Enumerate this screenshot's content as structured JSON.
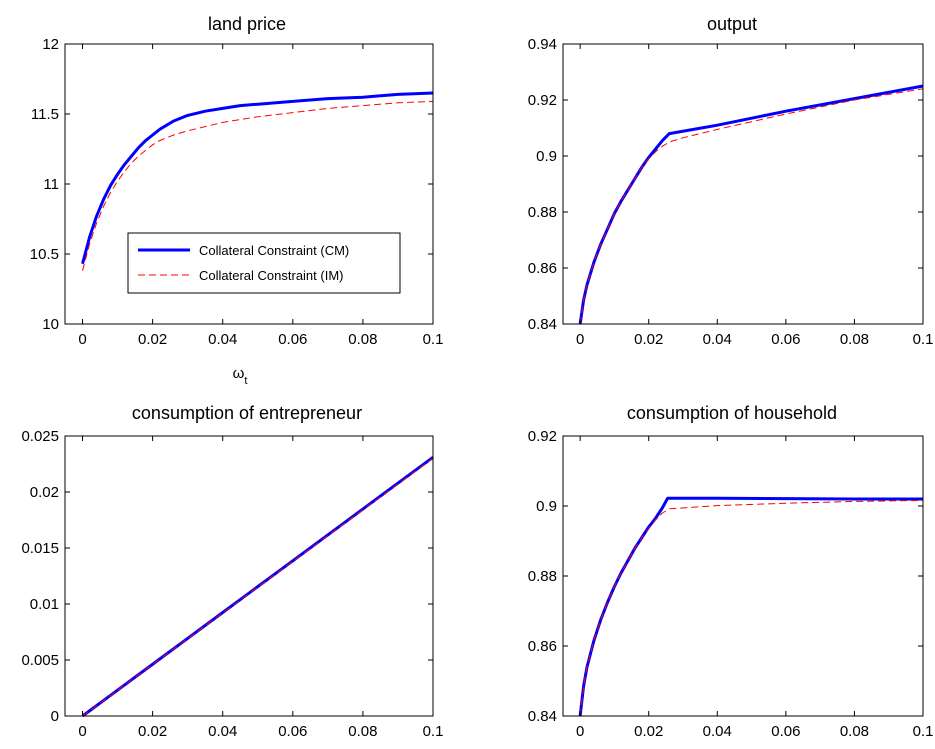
{
  "chart_data": [
    {
      "type": "line",
      "title": "land price",
      "xlabel": "ω",
      "xlabel_sub": "t",
      "ylabel": "",
      "xlim": [
        -0.005,
        0.1
      ],
      "ylim": [
        10,
        12
      ],
      "xticks": [
        0,
        0.02,
        0.04,
        0.06,
        0.08,
        0.1
      ],
      "xtick_labels": [
        "0",
        "0.02",
        "0.04",
        "0.06",
        "0.08",
        "0.1"
      ],
      "yticks": [
        10,
        10.5,
        11,
        11.5,
        12
      ],
      "ytick_labels": [
        "10",
        "10.5",
        "11",
        "11.5",
        "12"
      ],
      "legend": {
        "position": "lower-center",
        "entries": [
          "Collateral Constraint (CM)",
          "Collateral Constraint (IM)"
        ]
      },
      "series": [
        {
          "name": "Collateral Constraint (CM)",
          "color": "#0000ff",
          "style": "solid",
          "x": [
            0,
            0.002,
            0.004,
            0.006,
            0.008,
            0.01,
            0.012,
            0.014,
            0.016,
            0.018,
            0.02,
            0.022,
            0.024,
            0.026,
            0.03,
            0.035,
            0.04,
            0.045,
            0.05,
            0.06,
            0.07,
            0.08,
            0.09,
            0.1
          ],
          "y": [
            10.43,
            10.62,
            10.77,
            10.89,
            10.99,
            11.07,
            11.14,
            11.2,
            11.26,
            11.31,
            11.35,
            11.39,
            11.42,
            11.45,
            11.49,
            11.52,
            11.54,
            11.56,
            11.57,
            11.59,
            11.61,
            11.62,
            11.64,
            11.65
          ]
        },
        {
          "name": "Collateral Constraint (IM)",
          "color": "#ff0000",
          "style": "dashed",
          "x": [
            0,
            0.002,
            0.004,
            0.006,
            0.008,
            0.01,
            0.012,
            0.014,
            0.016,
            0.018,
            0.02,
            0.022,
            0.024,
            0.026,
            0.03,
            0.035,
            0.04,
            0.045,
            0.05,
            0.06,
            0.07,
            0.08,
            0.09,
            0.1
          ],
          "y": [
            10.38,
            10.57,
            10.72,
            10.84,
            10.94,
            11.02,
            11.09,
            11.15,
            11.2,
            11.24,
            11.28,
            11.31,
            11.33,
            11.35,
            11.38,
            11.41,
            11.44,
            11.46,
            11.48,
            11.51,
            11.54,
            11.56,
            11.58,
            11.59
          ]
        }
      ]
    },
    {
      "type": "line",
      "title": "output",
      "xlabel": "",
      "ylabel": "",
      "xlim": [
        -0.005,
        0.1
      ],
      "ylim": [
        0.84,
        0.94
      ],
      "xticks": [
        0,
        0.02,
        0.04,
        0.06,
        0.08,
        0.1
      ],
      "xtick_labels": [
        "0",
        "0.02",
        "0.04",
        "0.06",
        "0.08",
        "0.1"
      ],
      "yticks": [
        0.84,
        0.86,
        0.88,
        0.9,
        0.92,
        0.94
      ],
      "ytick_labels": [
        "0.84",
        "0.86",
        "0.88",
        "0.9",
        "0.92",
        "0.94"
      ],
      "series": [
        {
          "name": "Collateral Constraint (CM)",
          "color": "#0000ff",
          "style": "solid",
          "x": [
            0,
            0.001,
            0.002,
            0.004,
            0.006,
            0.008,
            0.01,
            0.012,
            0.014,
            0.016,
            0.018,
            0.02,
            0.022,
            0.024,
            0.026,
            0.04,
            0.06,
            0.08,
            0.1
          ],
          "y": [
            0.84,
            0.8485,
            0.854,
            0.862,
            0.8685,
            0.874,
            0.8795,
            0.884,
            0.888,
            0.892,
            0.896,
            0.8995,
            0.9025,
            0.9055,
            0.908,
            0.911,
            0.916,
            0.9205,
            0.925
          ]
        },
        {
          "name": "Collateral Constraint (IM)",
          "color": "#ff0000",
          "style": "dashed",
          "x": [
            0,
            0.001,
            0.002,
            0.004,
            0.006,
            0.008,
            0.01,
            0.012,
            0.014,
            0.016,
            0.018,
            0.02,
            0.022,
            0.024,
            0.026,
            0.03,
            0.04,
            0.06,
            0.08,
            0.1
          ],
          "y": [
            0.84,
            0.8485,
            0.854,
            0.862,
            0.8685,
            0.874,
            0.8795,
            0.884,
            0.888,
            0.892,
            0.896,
            0.899,
            0.9015,
            0.9035,
            0.905,
            0.9065,
            0.9095,
            0.915,
            0.92,
            0.924
          ]
        }
      ]
    },
    {
      "type": "line",
      "title": "consumption of entrepreneur",
      "xlabel": "",
      "ylabel": "",
      "xlim": [
        -0.005,
        0.1
      ],
      "ylim": [
        0,
        0.025
      ],
      "xticks": [
        0,
        0.02,
        0.04,
        0.06,
        0.08,
        0.1
      ],
      "xtick_labels": [
        "0",
        "0.02",
        "0.04",
        "0.06",
        "0.08",
        "0.1"
      ],
      "yticks": [
        0,
        0.005,
        0.01,
        0.015,
        0.02,
        0.025
      ],
      "ytick_labels": [
        "0",
        "0.005",
        "0.01",
        "0.015",
        "0.02",
        "0.025"
      ],
      "series": [
        {
          "name": "Collateral Constraint (CM)",
          "color": "#0000ff",
          "style": "solid",
          "x": [
            0,
            0.02,
            0.04,
            0.06,
            0.08,
            0.1
          ],
          "y": [
            0,
            0.00462,
            0.00924,
            0.01386,
            0.01848,
            0.0231
          ]
        },
        {
          "name": "Collateral Constraint (IM)",
          "color": "#ff0000",
          "style": "dashed",
          "x": [
            0,
            0.02,
            0.04,
            0.06,
            0.08,
            0.1
          ],
          "y": [
            0,
            0.0046,
            0.0092,
            0.0138,
            0.0184,
            0.023
          ]
        }
      ]
    },
    {
      "type": "line",
      "title": "consumption of household",
      "xlabel": "",
      "ylabel": "",
      "xlim": [
        -0.005,
        0.1
      ],
      "ylim": [
        0.84,
        0.92
      ],
      "xticks": [
        0,
        0.02,
        0.04,
        0.06,
        0.08,
        0.1
      ],
      "xtick_labels": [
        "0",
        "0.02",
        "0.04",
        "0.06",
        "0.08",
        "0.1"
      ],
      "yticks": [
        0.84,
        0.86,
        0.88,
        0.9,
        0.92
      ],
      "ytick_labels": [
        "0.84",
        "0.86",
        "0.88",
        "0.9",
        "0.92"
      ],
      "series": [
        {
          "name": "Collateral Constraint (CM)",
          "color": "#0000ff",
          "style": "solid",
          "x": [
            0,
            0.001,
            0.002,
            0.004,
            0.006,
            0.008,
            0.01,
            0.012,
            0.014,
            0.016,
            0.018,
            0.02,
            0.022,
            0.024,
            0.0255,
            0.04,
            0.06,
            0.08,
            0.1
          ],
          "y": [
            0.84,
            0.8485,
            0.854,
            0.8615,
            0.8675,
            0.8725,
            0.877,
            0.881,
            0.8845,
            0.888,
            0.891,
            0.894,
            0.8965,
            0.8995,
            0.9022,
            0.9022,
            0.9021,
            0.902,
            0.902
          ]
        },
        {
          "name": "Collateral Constraint (IM)",
          "color": "#ff0000",
          "style": "dashed",
          "x": [
            0,
            0.001,
            0.002,
            0.004,
            0.006,
            0.008,
            0.01,
            0.012,
            0.014,
            0.016,
            0.018,
            0.02,
            0.022,
            0.024,
            0.026,
            0.04,
            0.06,
            0.08,
            0.1
          ],
          "y": [
            0.84,
            0.8485,
            0.854,
            0.8615,
            0.8675,
            0.8725,
            0.877,
            0.881,
            0.8845,
            0.888,
            0.891,
            0.8935,
            0.896,
            0.898,
            0.8992,
            0.9001,
            0.9008,
            0.9013,
            0.9016
          ]
        }
      ]
    }
  ]
}
